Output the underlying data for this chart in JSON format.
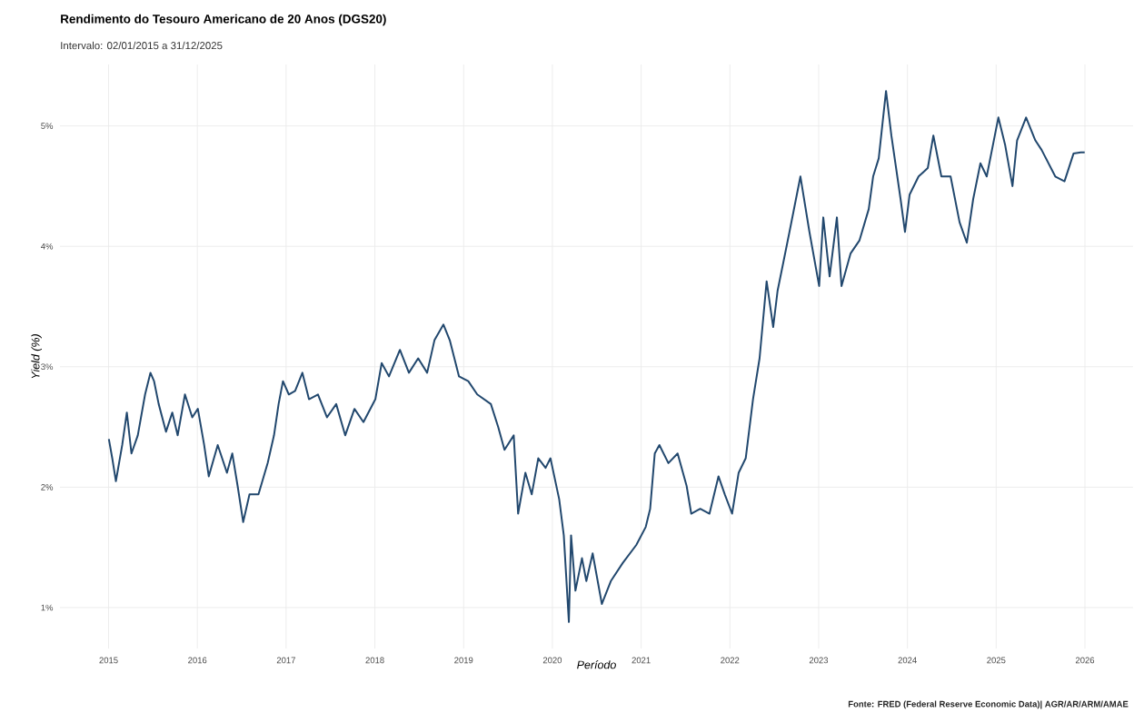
{
  "chart_data": {
    "type": "line",
    "title": "Rendimento do Tesouro Americano de 20 Anos (DGS20)",
    "subtitle": "Intervalo: 02/01/2015 a 31/12/2025",
    "xlabel": "Período",
    "ylabel": "Yield (%)",
    "annotations": [
      "Fonte: FRED (Federal Reserve Economic Data)| AGR/AR/ARM/AMAE"
    ],
    "x": [
      "2015-01-02",
      "2015-01-16",
      "2015-01-31",
      "2015-02-26",
      "2015-03-17",
      "2015-04-05",
      "2015-05-01",
      "2015-05-31",
      "2015-06-22",
      "2015-07-07",
      "2015-07-26",
      "2015-08-25",
      "2015-09-20",
      "2015-10-12",
      "2015-11-11",
      "2015-12-11",
      "2016-01-03",
      "2016-01-29",
      "2016-02-17",
      "2016-03-25",
      "2016-05-02",
      "2016-05-24",
      "2016-06-15",
      "2016-07-08",
      "2016-08-03",
      "2016-09-09",
      "2016-10-17",
      "2016-11-12",
      "2016-12-01",
      "2016-12-19",
      "2017-01-12",
      "2017-02-07",
      "2017-03-09",
      "2017-04-05",
      "2017-05-12",
      "2017-06-18",
      "2017-07-26",
      "2017-09-01",
      "2017-10-09",
      "2017-11-15",
      "2018-01-03",
      "2018-01-29",
      "2018-02-28",
      "2018-04-14",
      "2018-05-21",
      "2018-06-28",
      "2018-08-04",
      "2018-09-03",
      "2018-10-10",
      "2018-11-05",
      "2018-12-13",
      "2019-01-20",
      "2019-02-26",
      "2019-04-23",
      "2019-05-23",
      "2019-06-18",
      "2019-07-26",
      "2019-08-13",
      "2019-09-12",
      "2019-10-08",
      "2019-11-04",
      "2019-12-04",
      "2019-12-24",
      "2020-01-29",
      "2020-02-17",
      "2020-03-09",
      "2020-03-18",
      "2020-04-05",
      "2020-05-02",
      "2020-05-20",
      "2020-06-15",
      "2020-07-23",
      "2020-08-29",
      "2020-10-17",
      "2020-12-12",
      "2021-01-20",
      "2021-02-07",
      "2021-02-26",
      "2021-03-17",
      "2021-04-23",
      "2021-05-31",
      "2021-07-07",
      "2021-07-26",
      "2021-09-01",
      "2021-10-09",
      "2021-11-15",
      "2021-12-11",
      "2022-01-10",
      "2022-02-06",
      "2022-03-07",
      "2022-04-06",
      "2022-05-03",
      "2022-06-01",
      "2022-06-28",
      "2022-07-16",
      "2022-08-12",
      "2022-09-03",
      "2022-10-18",
      "2022-11-24",
      "2023-01-03",
      "2023-01-20",
      "2023-02-15",
      "2023-03-17",
      "2023-04-05",
      "2023-05-12",
      "2023-06-18",
      "2023-07-26",
      "2023-08-13",
      "2023-09-05",
      "2023-10-05",
      "2023-10-27",
      "2023-12-04",
      "2023-12-22",
      "2024-01-10",
      "2024-02-16",
      "2024-03-25",
      "2024-04-17",
      "2024-05-20",
      "2024-06-27",
      "2024-08-03",
      "2024-09-02",
      "2024-09-28",
      "2024-10-28",
      "2024-11-23",
      "2025-01-10",
      "2025-02-07",
      "2025-03-09",
      "2025-03-28",
      "2025-05-04",
      "2025-06-11",
      "2025-07-07",
      "2025-09-01",
      "2025-10-09",
      "2025-11-15",
      "2025-12-15",
      "2025-12-31"
    ],
    "series": [
      {
        "color": "#22486e",
        "values": [
          2.4,
          2.24,
          2.05,
          2.35,
          2.62,
          2.28,
          2.43,
          2.77,
          2.95,
          2.88,
          2.69,
          2.46,
          2.62,
          2.43,
          2.77,
          2.58,
          2.65,
          2.35,
          2.09,
          2.35,
          2.12,
          2.28,
          2.01,
          1.71,
          1.94,
          1.94,
          2.2,
          2.43,
          2.69,
          2.88,
          2.77,
          2.8,
          2.95,
          2.73,
          2.77,
          2.58,
          2.69,
          2.43,
          2.65,
          2.54,
          2.73,
          3.03,
          2.92,
          3.14,
          2.95,
          3.07,
          2.95,
          3.22,
          3.35,
          3.22,
          2.92,
          2.88,
          2.77,
          2.69,
          2.5,
          2.31,
          2.43,
          1.78,
          2.12,
          1.94,
          2.24,
          2.16,
          2.24,
          1.9,
          1.6,
          0.88,
          1.6,
          1.14,
          1.41,
          1.22,
          1.45,
          1.03,
          1.22,
          1.37,
          1.52,
          1.67,
          1.82,
          2.28,
          2.35,
          2.2,
          2.28,
          2.01,
          1.78,
          1.82,
          1.78,
          2.09,
          1.94,
          1.78,
          2.12,
          2.24,
          2.73,
          3.07,
          3.71,
          3.33,
          3.63,
          3.9,
          4.12,
          4.58,
          4.12,
          3.67,
          4.24,
          3.75,
          4.24,
          3.67,
          3.94,
          4.05,
          4.31,
          4.58,
          4.73,
          5.29,
          4.92,
          4.39,
          4.12,
          4.43,
          4.58,
          4.65,
          4.92,
          4.58,
          4.58,
          4.2,
          4.03,
          4.39,
          4.69,
          4.58,
          5.07,
          4.84,
          4.5,
          4.88,
          5.07,
          4.88,
          4.8,
          4.58,
          4.54,
          4.77,
          4.78,
          4.78
        ]
      }
    ],
    "xlim": [
      "2014-06-15",
      "2026-07-18"
    ],
    "ylim": [
      0.66,
      5.51
    ],
    "xticks": [
      {
        "value": "2015-01-01",
        "label": "2015"
      },
      {
        "value": "2016-01-01",
        "label": "2016"
      },
      {
        "value": "2017-01-01",
        "label": "2017"
      },
      {
        "value": "2018-01-01",
        "label": "2018"
      },
      {
        "value": "2019-01-01",
        "label": "2019"
      },
      {
        "value": "2020-01-01",
        "label": "2020"
      },
      {
        "value": "2021-01-01",
        "label": "2021"
      },
      {
        "value": "2022-01-01",
        "label": "2022"
      },
      {
        "value": "2023-01-01",
        "label": "2023"
      },
      {
        "value": "2024-01-01",
        "label": "2024"
      },
      {
        "value": "2025-01-01",
        "label": "2025"
      },
      {
        "value": "2026-01-01",
        "label": "2026"
      }
    ],
    "yticks": [
      {
        "value": 1,
        "label": "1%"
      },
      {
        "value": 2,
        "label": "2%"
      },
      {
        "value": 3,
        "label": "3%"
      },
      {
        "value": 4,
        "label": "4%"
      },
      {
        "value": 5,
        "label": "5%"
      }
    ],
    "grid": true,
    "line_style": "solid"
  }
}
